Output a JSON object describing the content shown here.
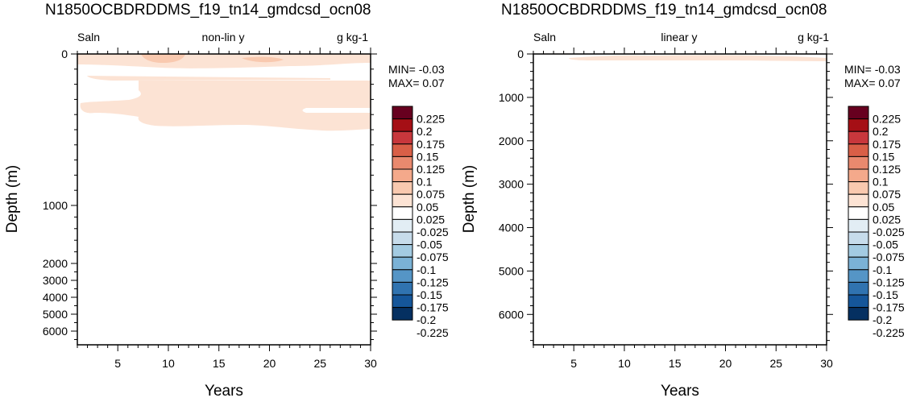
{
  "figure": {
    "palette": [
      "#67001f",
      "#a50f15",
      "#c8373c",
      "#d95f47",
      "#e9896e",
      "#f4a98b",
      "#f9c9af",
      "#fce3d4",
      "#ffffff",
      "#e2edf4",
      "#c7dceb",
      "#a3cbe2",
      "#7bb2d6",
      "#5595c6",
      "#3073b0",
      "#15569a",
      "#053061"
    ],
    "cb_labels": [
      "0.225",
      "0.2",
      "0.175",
      "0.15",
      "0.125",
      "0.1",
      "0.075",
      "0.05",
      "0.025",
      "-0.025",
      "-0.05",
      "-0.075",
      "-0.1",
      "-0.125",
      "-0.15",
      "-0.175",
      "-0.2",
      "-0.225"
    ]
  },
  "panels": [
    {
      "title": "N1850OCBDRDDMS_f19_tn14_gmdcsd_ocn08",
      "left_string": "Saln",
      "center_string": "non-lin y",
      "right_string": "g kg-1",
      "min_text": "MIN= -0.03",
      "max_text": "MAX=  0.07",
      "chart_data": {
        "type": "heatmap",
        "xlabel": "Years",
        "ylabel": "Depth (m)",
        "y_axis": "non-linear (stretched upper ocean)",
        "xlim": [
          1,
          30
        ],
        "xticks": [
          "5",
          "10",
          "15",
          "20",
          "25",
          "30"
        ],
        "yticks": [
          "0",
          "1000",
          "2000",
          "3000",
          "4000",
          "5000",
          "6000"
        ],
        "variable": "Saln",
        "units": "g kg-1",
        "min": -0.03,
        "max": 0.07,
        "features": [
          {
            "depth_range_m": [
              0,
              60
            ],
            "years": [
              1,
              30
            ],
            "value_range": [
              0.05,
              0.075
            ]
          },
          {
            "depth_range_m": [
              130,
              450
            ],
            "years": [
              6,
              30
            ],
            "value_range": [
              0.025,
              0.05
            ]
          }
        ]
      }
    },
    {
      "title": "N1850OCBDRDDMS_f19_tn14_gmdcsd_ocn08",
      "left_string": "Saln",
      "center_string": "linear y",
      "right_string": "g kg-1",
      "min_text": "MIN= -0.03",
      "max_text": "MAX=  0.07",
      "chart_data": {
        "type": "heatmap",
        "xlabel": "Years",
        "ylabel": "Depth (m)",
        "y_axis": "linear",
        "xlim": [
          1,
          30
        ],
        "xticks": [
          "5",
          "10",
          "15",
          "20",
          "25",
          "30"
        ],
        "yticks": [
          "0",
          "1000",
          "2000",
          "3000",
          "4000",
          "5000",
          "6000"
        ],
        "ylim": [
          6700,
          0
        ],
        "variable": "Saln",
        "units": "g kg-1",
        "min": -0.03,
        "max": 0.07,
        "features": [
          {
            "depth_range_m": [
              0,
              200
            ],
            "years": [
              4,
              30
            ],
            "value_range": [
              0.025,
              0.05
            ]
          }
        ]
      }
    }
  ]
}
